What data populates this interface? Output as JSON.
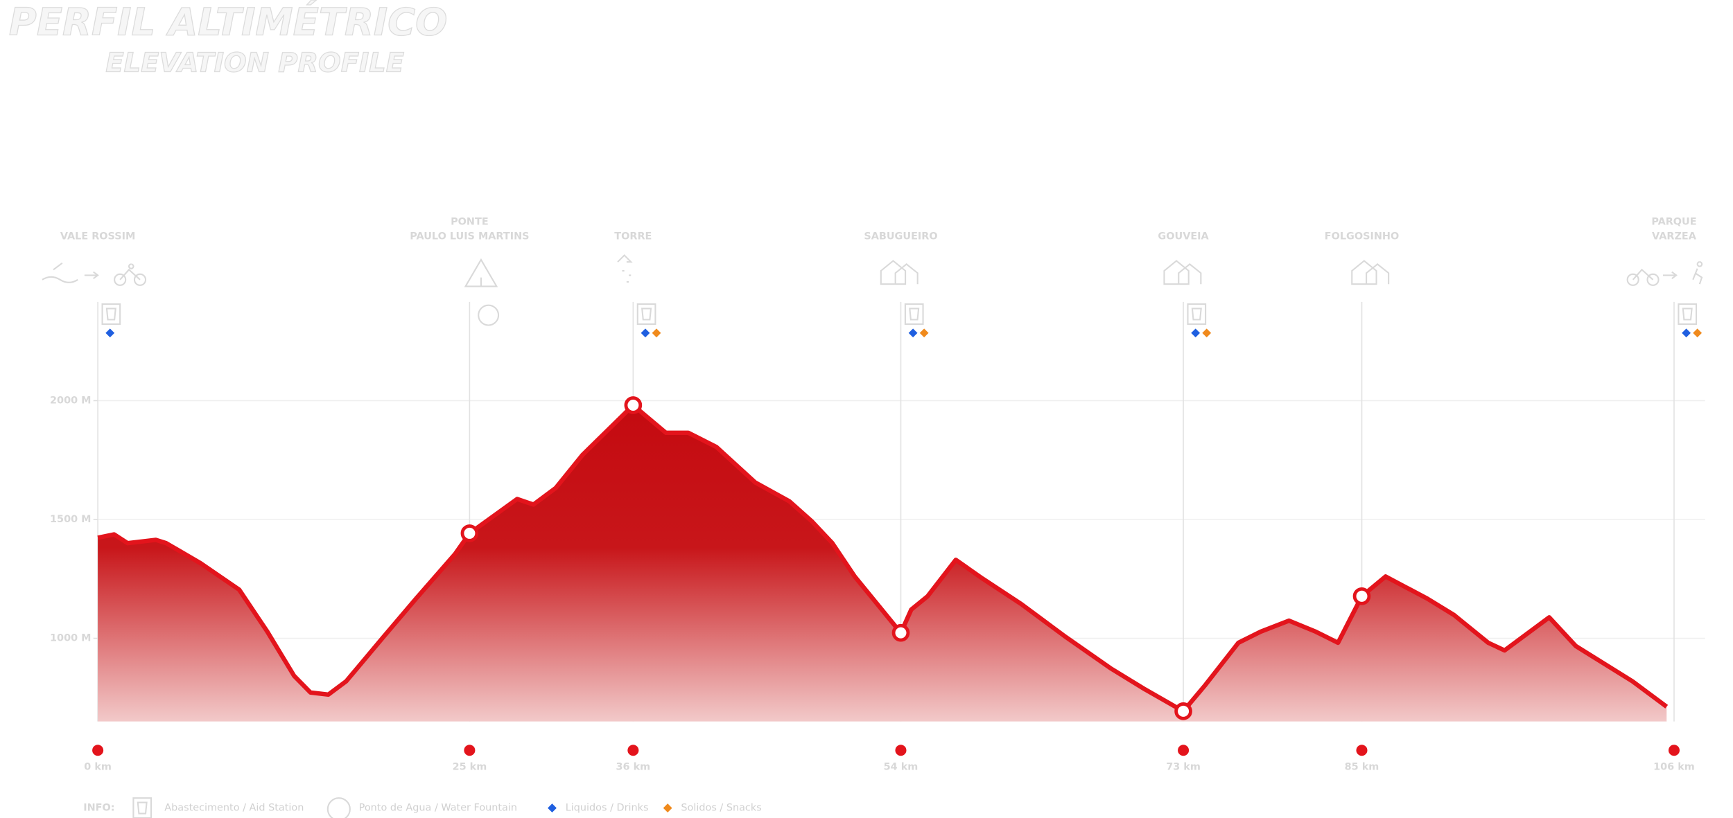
{
  "title": "PERFIL ALTIMÉTRICO",
  "subtitle": "ELEVATION PROFILE",
  "chart_data": {
    "type": "area",
    "x": [
      0,
      1.1,
      2.0,
      3.9,
      4.6,
      6.9,
      9.5,
      11.4,
      13.2,
      14.3,
      15.5,
      16.7,
      19.2,
      21.4,
      24.0,
      25,
      28.2,
      29.3,
      30.8,
      32.6,
      36,
      38.2,
      39.7,
      41.6,
      44.2,
      46.5,
      48.0,
      49.4,
      50.9,
      54,
      54.7,
      55.8,
      57.7,
      59.5,
      62.1,
      65.1,
      68.1,
      70.4,
      73,
      74.5,
      76.7,
      78.2,
      80.1,
      81.9,
      83.4,
      85,
      86.6,
      89.4,
      91.2,
      93.5,
      94.6,
      97.6,
      99.4,
      103.2,
      105.5
    ],
    "values": [
      1423,
      1437,
      1400,
      1414,
      1400,
      1316,
      1205,
      1028,
      842,
      772,
      763,
      819,
      1005,
      1167,
      1353,
      1442,
      1586,
      1563,
      1633,
      1772,
      1981,
      1865,
      1865,
      1805,
      1656,
      1577,
      1493,
      1400,
      1260,
      1023,
      1121,
      1177,
      1330,
      1251,
      1144,
      1005,
      874,
      786,
      693,
      805,
      981,
      1028,
      1074,
      1028,
      981,
      1177,
      1260,
      1167,
      1098,
      981,
      949,
      1088,
      967,
      819,
      712
    ],
    "color": "#e3141c",
    "xlim": [
      0,
      106
    ],
    "xticks": [
      {
        "value": 0,
        "label": "0 km"
      },
      {
        "value": 25,
        "label": "25 km"
      },
      {
        "value": 36,
        "label": "36 km"
      },
      {
        "value": 54,
        "label": "54 km"
      },
      {
        "value": 73,
        "label": "73 km"
      },
      {
        "value": 85,
        "label": "85 km"
      },
      {
        "value": 106,
        "label": "106 km"
      }
    ],
    "ylim": [
      650,
      2000
    ],
    "yticks": [
      {
        "value": 2000,
        "label": "2000 M"
      },
      {
        "value": 1500,
        "label": "1500 M"
      },
      {
        "value": 1000,
        "label": "1000 M"
      }
    ],
    "grid": true,
    "stations": [
      {
        "name": [
          "VALE ROSSIM"
        ],
        "aid": true,
        "water": false,
        "drinks": true,
        "snacks": false
      },
      {
        "name": [
          "PONTE",
          "PAULO LUIS MARTINS"
        ],
        "aid": false,
        "water": true,
        "drinks": false,
        "snacks": false
      },
      {
        "name": [
          "TORRE"
        ],
        "aid": true,
        "water": false,
        "drinks": true,
        "snacks": true
      },
      {
        "name": [
          "SABUGUEIRO"
        ],
        "aid": true,
        "water": false,
        "drinks": true,
        "snacks": true
      },
      {
        "name": [
          "GOUVEIA"
        ],
        "aid": true,
        "water": false,
        "drinks": true,
        "snacks": true
      },
      {
        "name": [
          "FOLGOSINHO"
        ],
        "aid": false,
        "water": false,
        "drinks": false,
        "snacks": false
      },
      {
        "name": [
          "PARQUE",
          "VARZEA"
        ],
        "aid": true,
        "water": false,
        "drinks": true,
        "snacks": true
      }
    ],
    "legend": {
      "title": "INFO:",
      "aid": "Abastecimento / Aid Station",
      "water": "Ponto de Agua / Water Fountain",
      "drinks": "Liquidos / Drinks",
      "snacks": "Solidos / Snacks",
      "drinks_color": "#1f5fe0",
      "snacks_color": "#f08a1c"
    }
  }
}
